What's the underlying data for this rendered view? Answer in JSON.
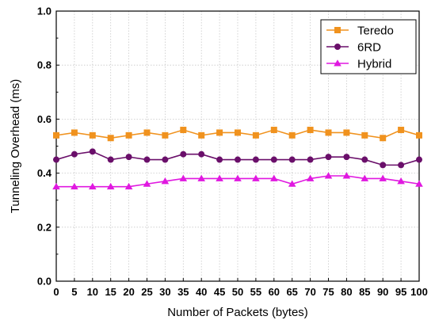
{
  "chart_data": {
    "type": "line",
    "title": "",
    "xlabel": "Number of Packets (bytes)",
    "ylabel": "Tunneling Overhead (ms)",
    "x": [
      0,
      5,
      10,
      15,
      20,
      25,
      30,
      35,
      40,
      45,
      50,
      55,
      60,
      65,
      70,
      75,
      80,
      85,
      90,
      95,
      100
    ],
    "xlim": [
      0,
      100
    ],
    "ylim": [
      0.0,
      1.0
    ],
    "xticks": [
      "0",
      "5",
      "10",
      "15",
      "20",
      "25",
      "30",
      "35",
      "40",
      "45",
      "50",
      "55",
      "60",
      "65",
      "70",
      "75",
      "80",
      "85",
      "90",
      "95",
      "100"
    ],
    "yticks": [
      "0.0",
      "0.2",
      "0.4",
      "0.6",
      "0.8",
      "1.0"
    ],
    "grid": true,
    "legend_position": "top-right",
    "series": [
      {
        "name": "Teredo",
        "color": "#f0921e",
        "marker": "square",
        "values": [
          0.54,
          0.55,
          0.54,
          0.53,
          0.54,
          0.55,
          0.54,
          0.56,
          0.54,
          0.55,
          0.55,
          0.54,
          0.56,
          0.54,
          0.56,
          0.55,
          0.55,
          0.54,
          0.53,
          0.56,
          0.54
        ]
      },
      {
        "name": "6RD",
        "color": "#6a0f6a",
        "marker": "circle",
        "values": [
          0.45,
          0.47,
          0.48,
          0.45,
          0.46,
          0.45,
          0.45,
          0.47,
          0.47,
          0.45,
          0.45,
          0.45,
          0.45,
          0.45,
          0.45,
          0.46,
          0.46,
          0.45,
          0.43,
          0.43,
          0.45
        ]
      },
      {
        "name": "Hybrid",
        "color": "#e018e0",
        "marker": "triangle",
        "values": [
          0.35,
          0.35,
          0.35,
          0.35,
          0.35,
          0.36,
          0.37,
          0.38,
          0.38,
          0.38,
          0.38,
          0.38,
          0.38,
          0.36,
          0.38,
          0.39,
          0.39,
          0.38,
          0.38,
          0.37,
          0.36
        ]
      }
    ]
  }
}
